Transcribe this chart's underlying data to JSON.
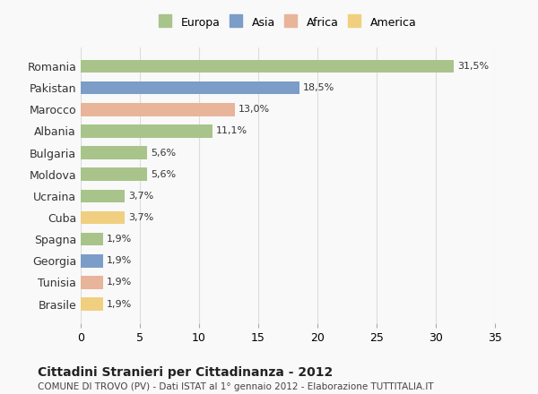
{
  "countries": [
    "Romania",
    "Pakistan",
    "Marocco",
    "Albania",
    "Bulgaria",
    "Moldova",
    "Ucraina",
    "Cuba",
    "Spagna",
    "Georgia",
    "Tunisia",
    "Brasile"
  ],
  "values": [
    31.5,
    18.5,
    13.0,
    11.1,
    5.6,
    5.6,
    3.7,
    3.7,
    1.9,
    1.9,
    1.9,
    1.9
  ],
  "labels": [
    "31,5%",
    "18,5%",
    "13,0%",
    "11,1%",
    "5,6%",
    "5,6%",
    "3,7%",
    "3,7%",
    "1,9%",
    "1,9%",
    "1,9%",
    "1,9%"
  ],
  "colors": [
    "#a8c48a",
    "#7b9dc7",
    "#e8b49a",
    "#a8c48a",
    "#a8c48a",
    "#a8c48a",
    "#a8c48a",
    "#f0d080",
    "#a8c48a",
    "#7b9dc7",
    "#e8b49a",
    "#f0d080"
  ],
  "legend_labels": [
    "Europa",
    "Asia",
    "Africa",
    "America"
  ],
  "legend_colors": [
    "#a8c48a",
    "#7b9dc7",
    "#e8b49a",
    "#f0d080"
  ],
  "title": "Cittadini Stranieri per Cittadinanza - 2012",
  "subtitle": "COMUNE DI TROVO (PV) - Dati ISTAT al 1° gennaio 2012 - Elaborazione TUTTITALIA.IT",
  "xlim": [
    0,
    35
  ],
  "xticks": [
    0,
    5,
    10,
    15,
    20,
    25,
    30,
    35
  ],
  "background_color": "#f9f9f9",
  "grid_color": "#dddddd",
  "bar_height": 0.6
}
